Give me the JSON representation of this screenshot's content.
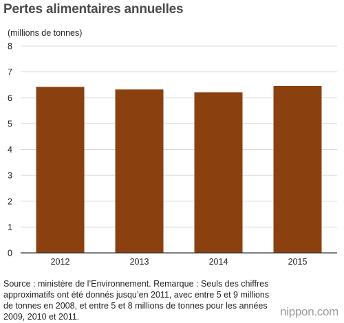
{
  "title": "Pertes alimentaires annuelles",
  "unit_label": "(millions de tonnes)",
  "note": "Source : ministère de l’Environnement. Remarque : Seuls des chiffres approximatifs ont été donnés jusqu’en 2011, avec entre 5 et 9 millions de tonnes en 2008, et entre 5 et 8 millions de tonnes pour les années 2009, 2010 et 2011.",
  "brand": "nippon.com",
  "colors": {
    "bar": "#8b4010",
    "grid": "#d8d8d8",
    "axis": "#333333"
  },
  "chart_data": {
    "type": "bar",
    "title": "Pertes alimentaires annuelles",
    "ylabel": "(millions de tonnes)",
    "xlabel": "",
    "categories": [
      "2012",
      "2013",
      "2014",
      "2015"
    ],
    "values": [
      6.42,
      6.32,
      6.21,
      6.46
    ],
    "ylim": [
      0,
      8
    ],
    "yticks": [
      "0",
      "1",
      "2",
      "3",
      "4",
      "5",
      "6",
      "7",
      "8"
    ],
    "grid": true,
    "legend": "none"
  }
}
